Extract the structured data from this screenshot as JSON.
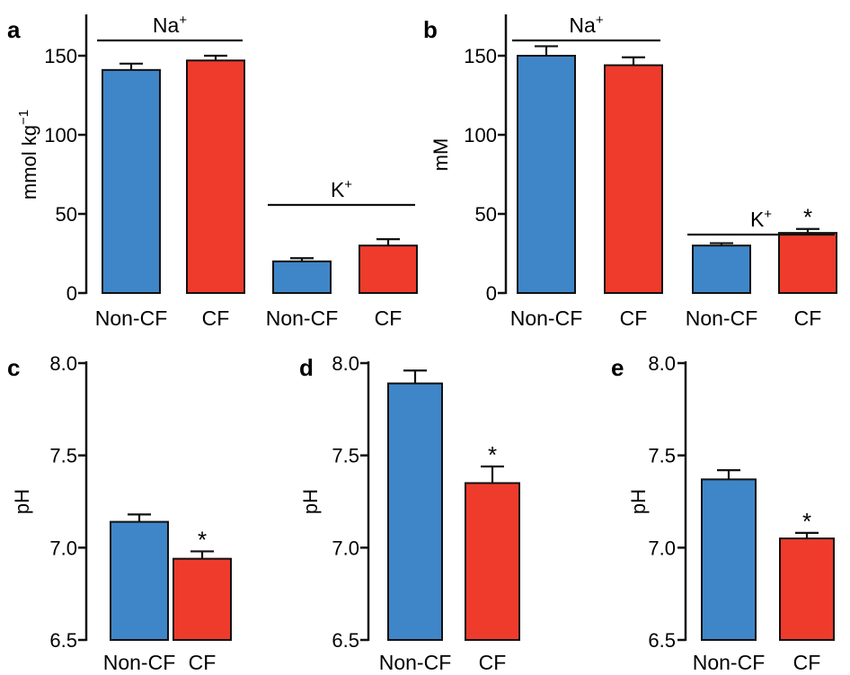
{
  "colors": {
    "non_cf": "#3f86c8",
    "cf": "#ee3b2c",
    "axis": "#111111"
  },
  "chart_data": [
    {
      "type": "bar",
      "panel": "a",
      "ylabel": "mmol kg",
      "ylabel_sup": "−1",
      "ylim": [
        0,
        175
      ],
      "yticks": [
        "0",
        "50",
        "100",
        "150"
      ],
      "categories": [
        "Non-CF",
        "CF",
        "Non-CF",
        "CF"
      ],
      "values": [
        141,
        147,
        20,
        30
      ],
      "errors": [
        4,
        3,
        2,
        4
      ],
      "significant": [
        false,
        false,
        false,
        false
      ],
      "groups": [
        {
          "name": "Na",
          "sup": "+",
          "span": [
            0,
            1
          ]
        },
        {
          "name": "K",
          "sup": "+",
          "span": [
            2,
            3
          ]
        }
      ]
    },
    {
      "type": "bar",
      "panel": "b",
      "ylabel": "mM",
      "ylim": [
        0,
        175
      ],
      "yticks": [
        "0",
        "50",
        "100",
        "150"
      ],
      "categories": [
        "Non-CF",
        "CF",
        "Non-CF",
        "CF"
      ],
      "values": [
        150,
        144,
        30,
        38
      ],
      "errors": [
        6,
        5,
        1.5,
        2.5
      ],
      "significant": [
        false,
        false,
        false,
        true
      ],
      "significance_mark": "*",
      "groups": [
        {
          "name": "Na",
          "sup": "+",
          "span": [
            0,
            1
          ]
        },
        {
          "name": "K",
          "sup": "+",
          "span": [
            2,
            3
          ]
        }
      ]
    },
    {
      "type": "bar",
      "panel": "c",
      "ylabel": "pH",
      "ylim": [
        6.5,
        8.0
      ],
      "yticks": [
        "6.5",
        "7.0",
        "7.5",
        "8.0"
      ],
      "categories": [
        "Non-CF",
        "CF"
      ],
      "values": [
        7.14,
        6.94
      ],
      "errors": [
        0.04,
        0.04
      ],
      "significant": [
        false,
        true
      ],
      "significance_mark": "*"
    },
    {
      "type": "bar",
      "panel": "d",
      "ylabel": "pH",
      "ylim": [
        6.5,
        8.0
      ],
      "yticks": [
        "6.5",
        "7.0",
        "7.5",
        "8.0"
      ],
      "categories": [
        "Non-CF",
        "CF"
      ],
      "values": [
        7.89,
        7.35
      ],
      "errors": [
        0.07,
        0.09
      ],
      "significant": [
        false,
        true
      ],
      "significance_mark": "*"
    },
    {
      "type": "bar",
      "panel": "e",
      "ylabel": "pH",
      "ylim": [
        6.5,
        8.0
      ],
      "yticks": [
        "6.5",
        "7.0",
        "7.5",
        "8.0"
      ],
      "categories": [
        "Non-CF",
        "CF"
      ],
      "values": [
        7.37,
        7.05
      ],
      "errors": [
        0.05,
        0.03
      ],
      "significant": [
        false,
        true
      ],
      "significance_mark": "*"
    }
  ]
}
